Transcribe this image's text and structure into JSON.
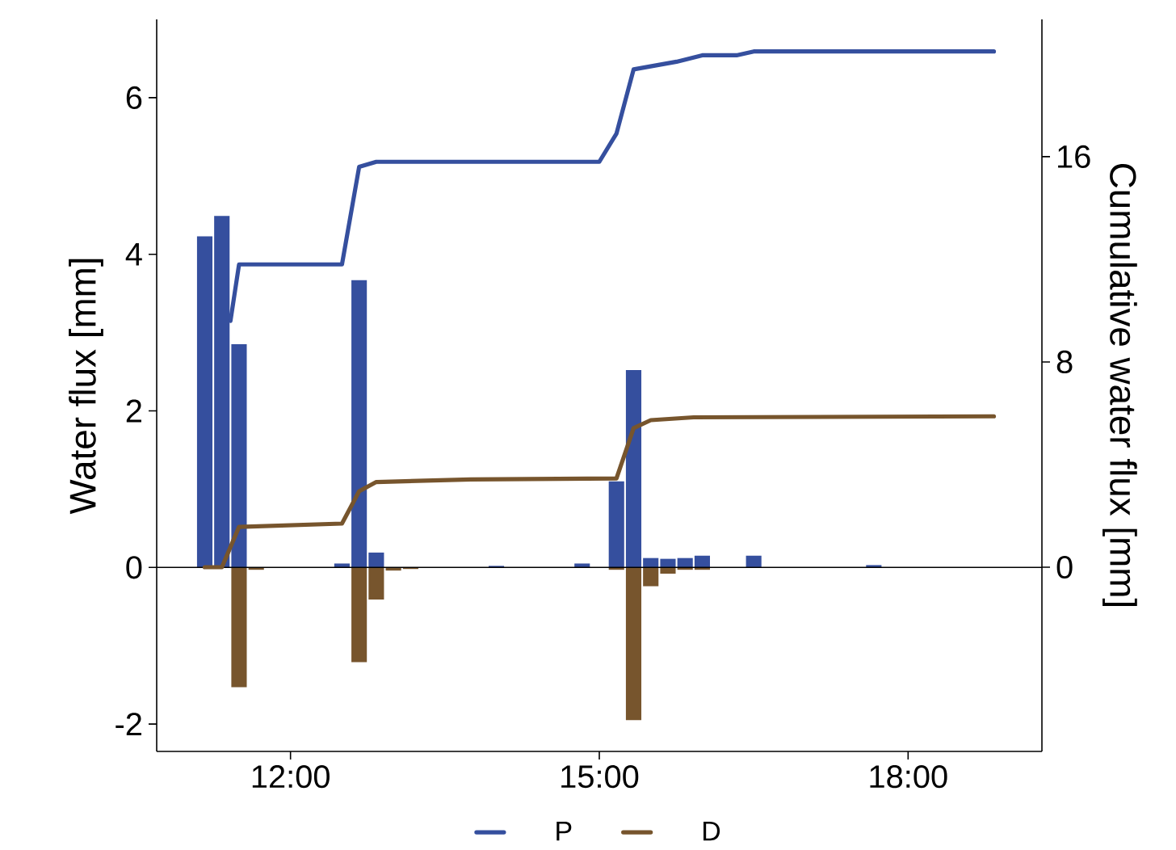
{
  "chart_data": {
    "type": "bar",
    "ylabel": "Water flux [mm]",
    "y2label": "Cumulative water flux [mm]",
    "x": [
      11.1667,
      11.3333,
      11.5,
      11.6667,
      12.5,
      12.6667,
      12.8333,
      13.0,
      13.1667,
      14.0,
      14.8333,
      15.1667,
      15.3333,
      15.5,
      15.6667,
      15.8333,
      16.0,
      16.5,
      17.6667
    ],
    "xlim": [
      10.7,
      19.3
    ],
    "xticks": [
      {
        "value": 12,
        "label": "12:00"
      },
      {
        "value": 15,
        "label": "15:00"
      },
      {
        "value": 18,
        "label": "18:00"
      }
    ],
    "ylim": [
      -2.35,
      7.0
    ],
    "yticks": [
      -2,
      0,
      2,
      4,
      6
    ],
    "y2lim": [
      -7.18,
      21.35
    ],
    "y2ticks": [
      0,
      8,
      16
    ],
    "series": [
      {
        "color": "#354f9e",
        "values": [
          4.23,
          4.49,
          2.85,
          null,
          0.05,
          3.67,
          0.19,
          null,
          null,
          0.02,
          0.05,
          1.1,
          2.52,
          0.12,
          0.11,
          0.12,
          0.15,
          0.15,
          0.03
        ]
      },
      {
        "color": "#77552d",
        "values": [
          null,
          null,
          -1.53,
          -0.03,
          null,
          -1.21,
          -0.41,
          -0.04,
          -0.02,
          null,
          null,
          -0.03,
          -1.95,
          -0.24,
          -0.08,
          -0.03,
          -0.03,
          null,
          null
        ]
      },
      {
        "type": "line",
        "name": "P",
        "axis": "y2",
        "color": "#354f9e",
        "x": [
          11.4167,
          11.5,
          12.5,
          12.6667,
          12.8333,
          15.0,
          15.1667,
          15.3333,
          15.75,
          16.0,
          16.3333,
          16.5,
          18.8333
        ],
        "values": [
          9.6,
          11.8,
          11.8,
          15.6,
          15.8,
          15.8,
          16.9,
          19.4,
          19.7,
          19.95,
          19.95,
          20.1,
          20.1
        ]
      },
      {
        "type": "line",
        "name": "D",
        "axis": "y2",
        "color": "#77552d",
        "x": [
          11.1667,
          11.3333,
          11.5,
          12.5,
          12.6667,
          12.8333,
          13.75,
          15.1667,
          15.3333,
          15.5,
          15.9167,
          18.8333
        ],
        "values": [
          0.0,
          0.0,
          1.57,
          1.7,
          2.96,
          3.32,
          3.42,
          3.46,
          5.42,
          5.73,
          5.84,
          5.88
        ]
      }
    ],
    "ref_lines": [
      {
        "axis": "y",
        "value": 0,
        "color": "#000000"
      }
    ],
    "legend": "bottom"
  }
}
